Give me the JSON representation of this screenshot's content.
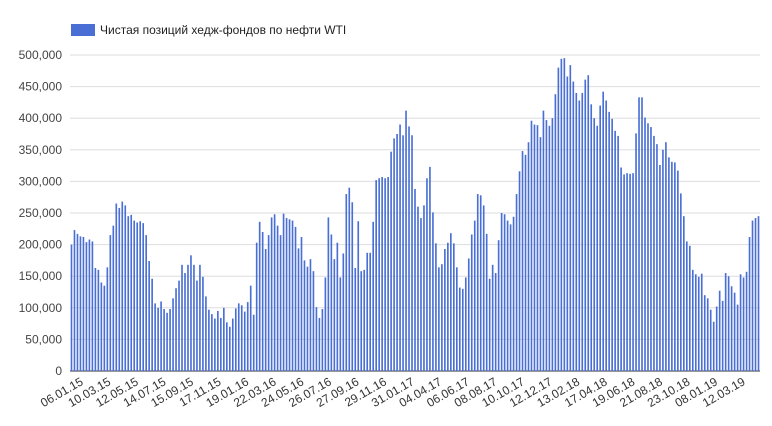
{
  "chart_data": {
    "type": "bar",
    "legend": {
      "label": "Чистая позиций хедж-фондов по нефти WTI",
      "placement": "top-left"
    },
    "series": [
      {
        "name": "Чистая позиций хедж-фондов по нефти WTI",
        "color": "#4a6fd4",
        "values": [
          200000,
          223000,
          217000,
          213000,
          212000,
          204000,
          208000,
          205000,
          163000,
          160000,
          140000,
          135000,
          164000,
          215000,
          230000,
          265000,
          258000,
          268000,
          262000,
          245000,
          247000,
          238000,
          235000,
          237000,
          234000,
          215000,
          174000,
          146000,
          107000,
          100000,
          110000,
          98000,
          92000,
          98000,
          115000,
          131000,
          143000,
          168000,
          155000,
          168000,
          183000,
          168000,
          143000,
          168000,
          149000,
          118000,
          97000,
          90000,
          83000,
          95000,
          84000,
          100000,
          77000,
          70000,
          83000,
          99000,
          107000,
          104000,
          94000,
          109000,
          135000,
          89000,
          203000,
          236000,
          220000,
          193000,
          215000,
          243000,
          248000,
          230000,
          215000,
          249000,
          242000,
          240000,
          238000,
          228000,
          194000,
          212000,
          175000,
          165000,
          177000,
          158000,
          101000,
          84000,
          98000,
          148000,
          243000,
          216000,
          177000,
          203000,
          148000,
          186000,
          280000,
          290000,
          267000,
          163000,
          237000,
          158000,
          160000,
          187000,
          187000,
          236000,
          302000,
          305000,
          307000,
          305000,
          307000,
          347000,
          368000,
          375000,
          390000,
          373000,
          412000,
          387000,
          373000,
          288000,
          260000,
          242000,
          262000,
          305000,
          323000,
          251000,
          202000,
          164000,
          169000,
          193000,
          203000,
          218000,
          202000,
          164000,
          132000,
          130000,
          148000,
          178000,
          216000,
          238000,
          280000,
          278000,
          262000,
          217000,
          146000,
          168000,
          155000,
          207000,
          250000,
          248000,
          238000,
          232000,
          244000,
          280000,
          316000,
          348000,
          342000,
          362000,
          396000,
          390000,
          389000,
          370000,
          412000,
          397000,
          388000,
          400000,
          438000,
          480000,
          494000,
          495000,
          466000,
          484000,
          458000,
          440000,
          428000,
          440000,
          461000,
          468000,
          422000,
          400000,
          388000,
          420000,
          442000,
          428000,
          410000,
          399000,
          380000,
          372000,
          322000,
          311000,
          313000,
          312000,
          313000,
          376000,
          433000,
          433000,
          401000,
          392000,
          386000,
          372000,
          359000,
          326000,
          350000,
          362000,
          338000,
          331000,
          330000,
          317000,
          281000,
          245000,
          205000,
          198000,
          160000,
          153000,
          149000,
          154000,
          120000,
          115000,
          97000,
          78000,
          102000,
          127000,
          111000,
          155000,
          150000,
          134000,
          124000,
          105000,
          153000,
          148000,
          157000,
          212000,
          238000,
          242000,
          245000
        ]
      }
    ],
    "x_tick_labels": [
      "06.01.15",
      "10.03.15",
      "12.05.15",
      "14.07.15",
      "15.09.15",
      "17.11.15",
      "19.01.16",
      "22.03.16",
      "24.05.16",
      "26.07.16",
      "27.09.16",
      "29.11.16",
      "31.01.17",
      "04.04.17",
      "06.06.17",
      "08.08.17",
      "10.10.17",
      "12.12.17",
      "13.02.18",
      "17.04.18",
      "19.06.18",
      "21.08.18",
      "23.10.18",
      "08.01.19",
      "12.03.19"
    ],
    "y_tick_labels": [
      "0",
      "50,000",
      "100,000",
      "150,000",
      "200,000",
      "250,000",
      "300,000",
      "350,000",
      "400,000",
      "450,000",
      "500,000"
    ],
    "ylim": [
      0,
      500000
    ],
    "grid": "horizontal"
  }
}
